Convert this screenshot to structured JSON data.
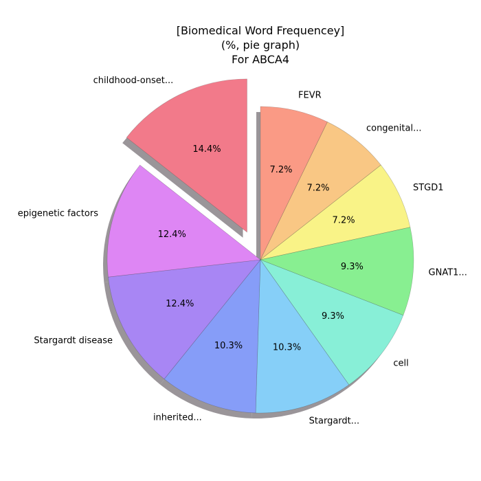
{
  "chart_data": {
    "type": "pie",
    "title": [
      "[Biomedical Word Frequencey]",
      "(%, pie graph)",
      "For ABCA4"
    ],
    "start_angle_deg": 90,
    "direction": "clockwise",
    "shadow": true,
    "slices": [
      {
        "label": "FEVR",
        "value": 7.2,
        "pct_label": "7.2%",
        "color": "#fa9a85",
        "explode": 0
      },
      {
        "label": "congenital...",
        "value": 7.2,
        "pct_label": "7.2%",
        "color": "#f9c784",
        "explode": 0
      },
      {
        "label": "STGD1",
        "value": 7.2,
        "pct_label": "7.2%",
        "color": "#f9f387",
        "explode": 0
      },
      {
        "label": "GNAT1...",
        "value": 9.3,
        "pct_label": "9.3%",
        "color": "#88ef91",
        "explode": 0
      },
      {
        "label": "cell",
        "value": 9.3,
        "pct_label": "9.3%",
        "color": "#88efd7",
        "explode": 0
      },
      {
        "label": "Stargardt...",
        "value": 10.3,
        "pct_label": "10.3%",
        "color": "#86cff8",
        "explode": 0
      },
      {
        "label": "inherited...",
        "value": 10.3,
        "pct_label": "10.3%",
        "color": "#869df8",
        "explode": 0
      },
      {
        "label": "Stargardt disease",
        "value": 12.4,
        "pct_label": "12.4%",
        "color": "#a886f4",
        "explode": 0
      },
      {
        "label": "epigenetic factors",
        "value": 12.4,
        "pct_label": "12.4%",
        "color": "#de86f4",
        "explode": 0
      },
      {
        "label": "childhood-onset...",
        "value": 14.4,
        "pct_label": "14.4%",
        "color": "#f27a8a",
        "explode": 0.2
      }
    ]
  }
}
